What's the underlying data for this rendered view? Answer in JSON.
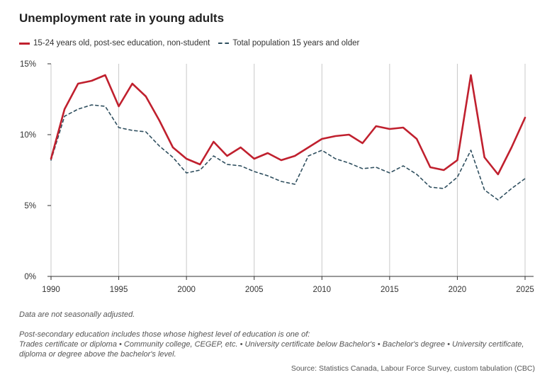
{
  "chart_data": {
    "type": "line",
    "title": "Unemployment rate in young adults",
    "xlabel": "",
    "ylabel": "",
    "xlim": [
      1990,
      2025
    ],
    "ylim": [
      0,
      15
    ],
    "x_ticks": [
      1990,
      1995,
      2000,
      2005,
      2010,
      2015,
      2020,
      2025
    ],
    "y_ticks": [
      0,
      5,
      10,
      15
    ],
    "y_tick_labels": [
      "0%",
      "5%",
      "10%",
      "15%"
    ],
    "grid": "vertical",
    "legend_position": "top-left",
    "x": [
      1990,
      1991,
      1992,
      1993,
      1994,
      1995,
      1996,
      1997,
      1998,
      1999,
      2000,
      2001,
      2002,
      2003,
      2004,
      2005,
      2006,
      2007,
      2008,
      2009,
      2010,
      2011,
      2012,
      2013,
      2014,
      2015,
      2016,
      2017,
      2018,
      2019,
      2020,
      2021,
      2022,
      2023,
      2024,
      2025
    ],
    "series": [
      {
        "name": "15-24 years old, post-sec education, non-student",
        "color": "#c0202e",
        "style": "solid",
        "values": [
          8.3,
          11.8,
          13.6,
          13.8,
          14.2,
          12.0,
          13.6,
          12.7,
          11.0,
          9.1,
          8.3,
          7.9,
          9.5,
          8.5,
          9.1,
          8.3,
          8.7,
          8.2,
          8.5,
          9.1,
          9.7,
          9.9,
          10.0,
          9.4,
          10.6,
          10.4,
          10.5,
          9.7,
          7.7,
          7.5,
          8.2,
          14.2,
          8.4,
          7.2,
          9.1,
          11.2
        ]
      },
      {
        "name": "Total population 15 years and older",
        "color": "#2f4f5f",
        "style": "dashed",
        "values": [
          8.2,
          11.3,
          11.8,
          12.1,
          12.0,
          10.5,
          10.3,
          10.2,
          9.2,
          8.4,
          7.3,
          7.5,
          8.5,
          7.9,
          7.8,
          7.4,
          7.1,
          6.7,
          6.5,
          8.5,
          8.9,
          8.3,
          8.0,
          7.6,
          7.7,
          7.3,
          7.8,
          7.2,
          6.3,
          6.2,
          7.0,
          8.9,
          6.1,
          5.4,
          6.2,
          6.9
        ]
      }
    ]
  },
  "notes": {
    "line1": "Data are not seasonally adjusted.",
    "line2": "Post-secondary education includes those whose highest level of education is one of:",
    "line3": "Trades certificate or diploma • Community college, CEGEP, etc. • University certificate below Bachelor's • Bachelor's degree • University certificate, diploma or degree above the bachelor's level."
  },
  "source": "Source: Statistics Canada, Labour Force Survey, custom tabulation (CBC)"
}
